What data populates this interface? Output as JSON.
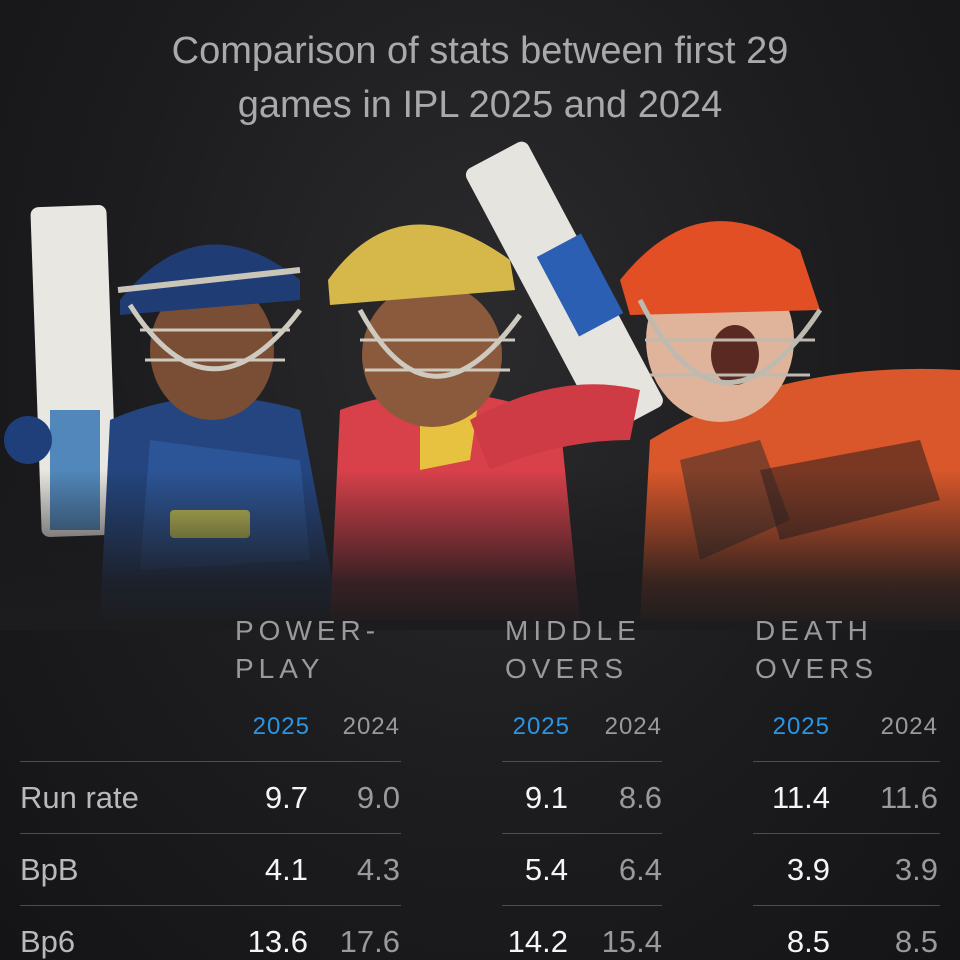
{
  "title_line1": "Comparison of stats between first 29",
  "title_line2": "games in IPL 2025 and 2024",
  "groups": [
    {
      "line1": "POWER-",
      "line2": "PLAY"
    },
    {
      "line1": "MIDDLE",
      "line2": "OVERS"
    },
    {
      "line1": "DEATH",
      "line2": "OVERS"
    }
  ],
  "year_new": "2025",
  "year_old": "2024",
  "rows": [
    {
      "label": "Run rate",
      "values": [
        "9.7",
        "9.0",
        "9.1",
        "8.6",
        "11.4",
        "11.6"
      ]
    },
    {
      "label": "BpB",
      "values": [
        "4.1",
        "4.3",
        "5.4",
        "6.4",
        "3.9",
        "3.9"
      ]
    },
    {
      "label": "Bp6",
      "values": [
        "13.6",
        "17.6",
        "14.2",
        "15.4",
        "8.5",
        "8.5"
      ]
    }
  ],
  "chart_data": {
    "type": "table",
    "title": "Comparison of stats between first 29 games in IPL 2025 and 2024",
    "column_groups": [
      "POWER-PLAY",
      "MIDDLE OVERS",
      "DEATH OVERS"
    ],
    "columns": [
      "2025",
      "2024"
    ],
    "series": [
      {
        "name": "Run rate",
        "values": [
          9.7,
          9.0,
          9.1,
          8.6,
          11.4,
          11.6
        ]
      },
      {
        "name": "BpB",
        "values": [
          4.1,
          4.3,
          5.4,
          6.4,
          3.9,
          3.9
        ]
      },
      {
        "name": "Bp6",
        "values": [
          13.6,
          17.6,
          14.2,
          15.4,
          8.5,
          8.5
        ]
      }
    ]
  },
  "colors": {
    "accent_2025": "#2b95e0",
    "text_2024": "#9a9a9c",
    "background": "#1c1c1e"
  },
  "images": [
    "player-lsg-batter",
    "player-pbks-batter",
    "player-srh-batter"
  ]
}
